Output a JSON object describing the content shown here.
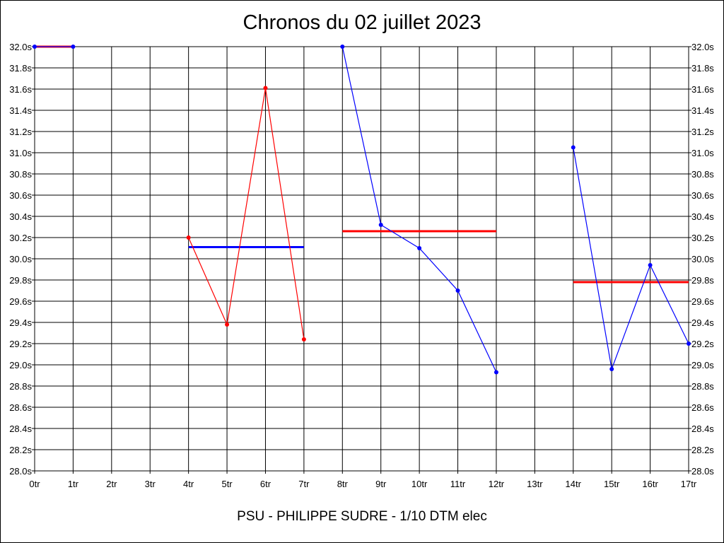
{
  "chart_data": {
    "type": "line",
    "title": "Chronos du 02 juillet 2023",
    "subtitle": "PSU - PHILIPPE SUDRE - 1/10 DTM elec",
    "x_tick_labels": [
      "0tr",
      "1tr",
      "2tr",
      "3tr",
      "4tr",
      "5tr",
      "6tr",
      "7tr",
      "8tr",
      "9tr",
      "10tr",
      "11tr",
      "12tr",
      "13tr",
      "14tr",
      "15tr",
      "16tr",
      "17tr"
    ],
    "y_tick_labels": [
      "32.0s",
      "31.8s",
      "31.6s",
      "31.4s",
      "31.2s",
      "31.0s",
      "30.8s",
      "30.6s",
      "30.4s",
      "30.2s",
      "30.0s",
      "29.8s",
      "29.6s",
      "29.4s",
      "29.2s",
      "29.0s",
      "28.8s",
      "28.6s",
      "28.4s",
      "28.2s",
      "28.0s"
    ],
    "xlim": [
      0,
      17
    ],
    "ylim": [
      28.0,
      32.0
    ],
    "grid": true,
    "segments": [
      {
        "color": "#0000ff",
        "points": [
          [
            0,
            32.0
          ],
          [
            1,
            32.0
          ]
        ]
      },
      {
        "color": "#ff0000",
        "points": [
          [
            4,
            30.2
          ],
          [
            5,
            29.38
          ],
          [
            6,
            31.61
          ],
          [
            7,
            29.24
          ]
        ]
      },
      {
        "color": "#0000ff",
        "points": [
          [
            8,
            32.0
          ],
          [
            9,
            30.32
          ],
          [
            10,
            30.1
          ],
          [
            11,
            29.7
          ],
          [
            12,
            28.93
          ]
        ]
      },
      {
        "color": "#0000ff",
        "points": [
          [
            14,
            31.05
          ],
          [
            15,
            28.96
          ],
          [
            16,
            29.94
          ],
          [
            17,
            29.2
          ]
        ]
      }
    ],
    "averages": [
      {
        "color": "#ff0000",
        "x": [
          0,
          1
        ],
        "y": 32.0
      },
      {
        "color": "#0000ff",
        "x": [
          4,
          7
        ],
        "y": 30.11
      },
      {
        "color": "#ff0000",
        "x": [
          8,
          12
        ],
        "y": 30.26
      },
      {
        "color": "#ff0000",
        "x": [
          14,
          17
        ],
        "y": 29.78
      }
    ]
  }
}
